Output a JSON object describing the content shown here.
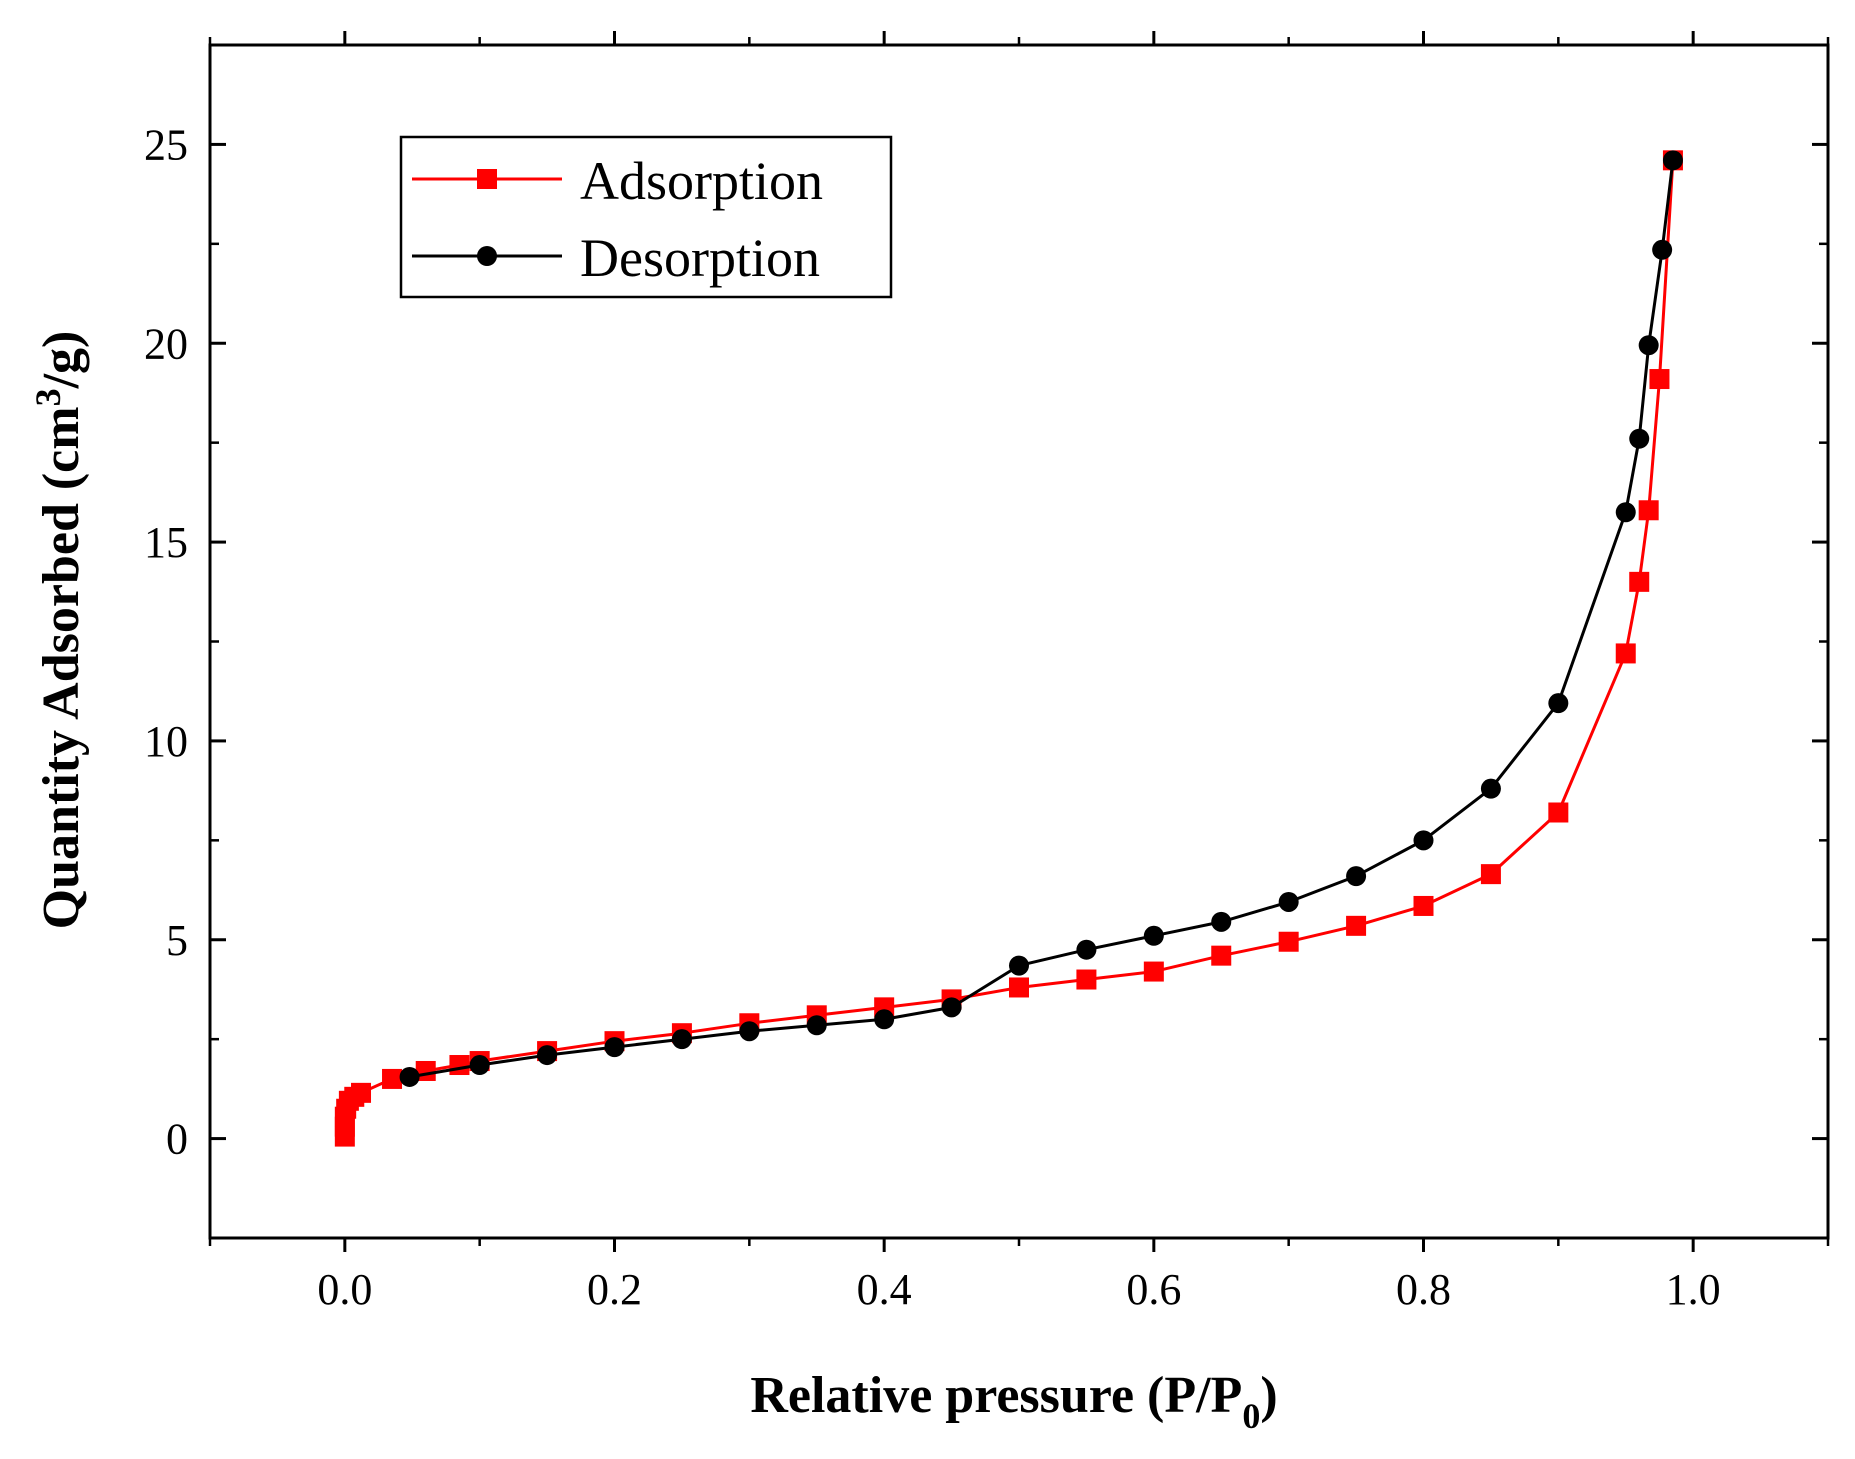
{
  "chart_data": {
    "type": "line",
    "title": "",
    "xlabel": {
      "main": "Relative pressure (P/P",
      "sub": "0",
      "close": ")"
    },
    "ylabel": {
      "main": "Quantity Adsorbed (cm",
      "sup": "3",
      "close": "/g)"
    },
    "xlim": [
      -0.1,
      1.1
    ],
    "ylim": [
      -2.5,
      27.5
    ],
    "xticks": [
      0.0,
      0.2,
      0.4,
      0.6,
      0.8,
      1.0
    ],
    "xtick_labels": [
      "0.0",
      "0.2",
      "0.4",
      "0.6",
      "0.8",
      "1.0"
    ],
    "yticks": [
      0,
      5,
      10,
      15,
      20,
      25
    ],
    "ytick_labels": [
      "0",
      "5",
      "10",
      "15",
      "20",
      "25"
    ],
    "legend_position": "top-left",
    "grid": false,
    "series": [
      {
        "name": "Adsorption",
        "color": "#ff0000",
        "marker": "square",
        "x": [
          0.0,
          0.0,
          0.0,
          0.001,
          0.003,
          0.007,
          0.012,
          0.035,
          0.06,
          0.085,
          0.1,
          0.15,
          0.2,
          0.25,
          0.3,
          0.35,
          0.4,
          0.45,
          0.5,
          0.55,
          0.6,
          0.65,
          0.7,
          0.75,
          0.8,
          0.85,
          0.9,
          0.95,
          0.96,
          0.967,
          0.975,
          0.985
        ],
        "y": [
          0.05,
          0.3,
          0.55,
          0.75,
          0.95,
          1.05,
          1.15,
          1.5,
          1.7,
          1.85,
          1.95,
          2.2,
          2.45,
          2.65,
          2.9,
          3.1,
          3.3,
          3.5,
          3.8,
          4.0,
          4.2,
          4.6,
          4.95,
          5.35,
          5.85,
          6.65,
          8.2,
          12.2,
          14.0,
          15.8,
          19.1,
          24.6
        ]
      },
      {
        "name": "Desorption",
        "color": "#000000",
        "marker": "circle",
        "x": [
          0.985,
          0.977,
          0.967,
          0.96,
          0.95,
          0.9,
          0.85,
          0.8,
          0.75,
          0.7,
          0.65,
          0.6,
          0.55,
          0.5,
          0.45,
          0.4,
          0.35,
          0.3,
          0.25,
          0.2,
          0.15,
          0.1,
          0.048
        ],
        "y": [
          24.6,
          22.35,
          19.95,
          17.6,
          15.75,
          10.95,
          8.8,
          7.5,
          6.6,
          5.95,
          5.45,
          5.1,
          4.75,
          4.35,
          3.3,
          3.0,
          2.85,
          2.7,
          2.5,
          2.3,
          2.1,
          1.85,
          1.55
        ]
      }
    ]
  }
}
